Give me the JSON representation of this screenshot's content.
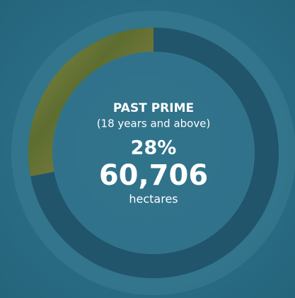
{
  "chart_data": {
    "type": "donut",
    "title": "PAST PRIME",
    "subtitle": "(18 years and above)",
    "values": [
      28
    ],
    "value_labels": [
      "28%"
    ],
    "color": "#6b7a3a",
    "annotations": [
      "60,706",
      "hectares"
    ]
  }
}
